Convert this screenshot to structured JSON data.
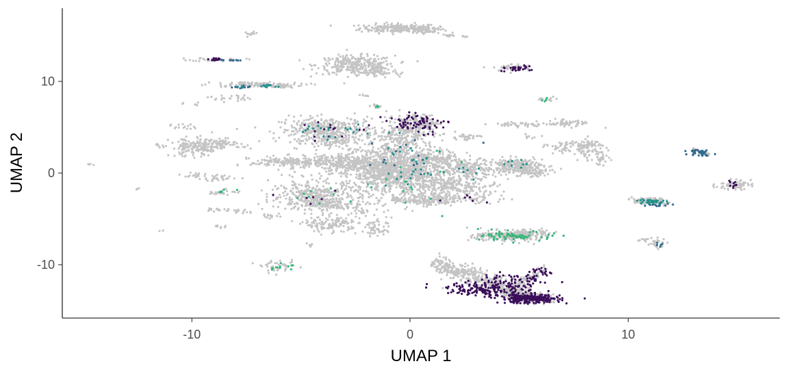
{
  "chart_data": {
    "type": "scatter",
    "title": "",
    "xlabel": "UMAP 1",
    "ylabel": "UMAP 2",
    "xlim": [
      -16,
      17
    ],
    "ylim": [
      -15.5,
      17.5
    ],
    "x_ticks": [
      {
        "value": -10,
        "label": "-10"
      },
      {
        "value": 0,
        "label": "0"
      },
      {
        "value": 10,
        "label": "10"
      }
    ],
    "y_ticks": [
      {
        "value": -10,
        "label": "-10"
      },
      {
        "value": 0,
        "label": "0"
      },
      {
        "value": 10,
        "label": "10"
      }
    ],
    "grid": false,
    "legend": "none",
    "colors": {
      "background_points": "#c4c4c4",
      "highlight_dark": "#3b0f5a",
      "highlight_mid": "#31688e",
      "highlight_teal": "#21918c",
      "highlight_green": "#35b779",
      "axis": "#000000",
      "tick_text": "#4d4d4d"
    },
    "clusters": [
      {
        "cx": -0.5,
        "cy": 15.8,
        "sx": 0.9,
        "sy": 0.25,
        "n": 220
      },
      {
        "cx": 0.8,
        "cy": 15.6,
        "sx": 0.3,
        "sy": 0.2,
        "n": 40
      },
      {
        "cx": -7.3,
        "cy": 15.2,
        "sx": 0.15,
        "sy": 0.1,
        "n": 12
      },
      {
        "cx": 1.8,
        "cy": 15.0,
        "sx": 0.15,
        "sy": 0.08,
        "n": 10
      },
      {
        "cx": -2.5,
        "cy": 11.8,
        "sx": 0.9,
        "sy": 0.5,
        "n": 300
      },
      {
        "cx": -1.5,
        "cy": 11.0,
        "sx": 0.5,
        "sy": 0.3,
        "n": 60
      },
      {
        "cx": 4.7,
        "cy": 11.5,
        "sx": 0.45,
        "sy": 0.2,
        "n": 50
      },
      {
        "cx": -8.8,
        "cy": 12.4,
        "sx": 0.6,
        "sy": 0.1,
        "n": 30
      },
      {
        "cx": -7.2,
        "cy": 9.6,
        "sx": 1.2,
        "sy": 0.15,
        "n": 90
      },
      {
        "cx": -8.3,
        "cy": 8.2,
        "sx": 0.5,
        "sy": 0.2,
        "n": 25
      },
      {
        "cx": -10,
        "cy": 7.5,
        "sx": 0.2,
        "sy": 0.1,
        "n": 6
      },
      {
        "cx": 6.3,
        "cy": 8.0,
        "sx": 0.3,
        "sy": 0.15,
        "n": 15
      },
      {
        "cx": -1.5,
        "cy": 7.3,
        "sx": 0.15,
        "sy": 0.12,
        "n": 12
      },
      {
        "cx": -2.1,
        "cy": 8.4,
        "sx": 0.1,
        "sy": 0.08,
        "n": 6
      },
      {
        "cx": -3.8,
        "cy": 4.7,
        "sx": 1.1,
        "sy": 0.7,
        "n": 380
      },
      {
        "cx": -3.5,
        "cy": 3.5,
        "sx": 0.6,
        "sy": 0.4,
        "n": 80
      },
      {
        "cx": -0.2,
        "cy": 4.5,
        "sx": 0.6,
        "sy": 0.9,
        "n": 260
      },
      {
        "cx": 0.5,
        "cy": 5.5,
        "sx": 0.4,
        "sy": 0.4,
        "n": 80
      },
      {
        "cx": -0.5,
        "cy": 1.0,
        "sx": 1.3,
        "sy": 1.2,
        "n": 900
      },
      {
        "cx": -0.5,
        "cy": -1.0,
        "sx": 1.0,
        "sy": 1.0,
        "n": 350
      },
      {
        "cx": -2.0,
        "cy": 0.8,
        "sx": 1.2,
        "sy": 0.6,
        "n": 250
      },
      {
        "cx": -3.5,
        "cy": 1.2,
        "sx": 0.8,
        "sy": 0.4,
        "n": 150
      },
      {
        "cx": -5.7,
        "cy": 1.2,
        "sx": 0.8,
        "sy": 0.3,
        "n": 150
      },
      {
        "cx": 1.2,
        "cy": 1.5,
        "sx": 0.5,
        "sy": 0.4,
        "n": 80
      },
      {
        "cx": 2.8,
        "cy": 0.5,
        "sx": 0.6,
        "sy": 0.5,
        "n": 150
      },
      {
        "cx": 2.5,
        "cy": -1.5,
        "sx": 0.8,
        "sy": 0.6,
        "n": 150
      },
      {
        "cx": 1.6,
        "cy": -2.8,
        "sx": 1.3,
        "sy": 0.25,
        "n": 120
      },
      {
        "cx": 1.7,
        "cy": -1.0,
        "sx": 0.3,
        "sy": 0.3,
        "n": 30
      },
      {
        "cx": 2.5,
        "cy": 3.9,
        "sx": 0.35,
        "sy": 0.2,
        "n": 30
      },
      {
        "cx": 1.0,
        "cy": -2.0,
        "sx": 0.5,
        "sy": 0.8,
        "n": 60
      },
      {
        "cx": -4.4,
        "cy": -2.5,
        "sx": 1.0,
        "sy": 0.8,
        "n": 380
      },
      {
        "cx": -3.6,
        "cy": -3.5,
        "sx": 0.5,
        "sy": 0.25,
        "n": 80
      },
      {
        "cx": -3.6,
        "cy": -5.6,
        "sx": 0.6,
        "sy": 0.4,
        "n": 120
      },
      {
        "cx": -1.5,
        "cy": -6.2,
        "sx": 0.3,
        "sy": 0.4,
        "n": 40
      },
      {
        "cx": -2.0,
        "cy": -4.2,
        "sx": 0.5,
        "sy": 0.8,
        "n": 50
      },
      {
        "cx": -9.8,
        "cy": 2.8,
        "sx": 0.6,
        "sy": 0.5,
        "n": 180
      },
      {
        "cx": -8.5,
        "cy": 3.2,
        "sx": 0.5,
        "sy": 0.25,
        "n": 60
      },
      {
        "cx": -10.5,
        "cy": 5.0,
        "sx": 0.3,
        "sy": 0.2,
        "n": 15
      },
      {
        "cx": -11.5,
        "cy": 3.0,
        "sx": 0.15,
        "sy": 0.1,
        "n": 5
      },
      {
        "cx": -8.8,
        "cy": -0.5,
        "sx": 0.5,
        "sy": 0.2,
        "n": 30
      },
      {
        "cx": -9.8,
        "cy": -0.2,
        "sx": 0.25,
        "sy": 0.15,
        "n": 15
      },
      {
        "cx": -8.6,
        "cy": -2.1,
        "sx": 0.4,
        "sy": 0.15,
        "n": 25
      },
      {
        "cx": -8.7,
        "cy": -4.0,
        "sx": 0.3,
        "sy": 0.12,
        "n": 18
      },
      {
        "cx": -8.7,
        "cy": -5.8,
        "sx": 0.15,
        "sy": 0.1,
        "n": 8
      },
      {
        "cx": -6.5,
        "cy": -4.7,
        "sx": 0.3,
        "sy": 0.15,
        "n": 15
      },
      {
        "cx": -7.7,
        "cy": -4.2,
        "sx": 0.3,
        "sy": 0.12,
        "n": 12
      },
      {
        "cx": -6.0,
        "cy": -10.2,
        "sx": 0.4,
        "sy": 0.3,
        "n": 40
      },
      {
        "cx": -4.6,
        "cy": -7.9,
        "sx": 0.12,
        "sy": 0.1,
        "n": 6
      },
      {
        "cx": -14.6,
        "cy": 0.9,
        "sx": 0.08,
        "sy": 0.06,
        "n": 4
      },
      {
        "cx": -12.5,
        "cy": -1.8,
        "sx": 0.08,
        "sy": 0.06,
        "n": 3
      },
      {
        "cx": -11.4,
        "cy": -6.3,
        "sx": 0.08,
        "sy": 0.06,
        "n": 3
      },
      {
        "cx": 4.9,
        "cy": 0.8,
        "sx": 0.6,
        "sy": 0.4,
        "n": 250
      },
      {
        "cx": 5.6,
        "cy": 0.1,
        "sx": 0.4,
        "sy": 0.3,
        "n": 60
      },
      {
        "cx": 4.5,
        "cy": -6.9,
        "sx": 0.8,
        "sy": 0.3,
        "n": 180
      },
      {
        "cx": 5.3,
        "cy": -6.6,
        "sx": 0.5,
        "sy": 0.2,
        "n": 90
      },
      {
        "cx": 4.9,
        "cy": 5.3,
        "sx": 0.6,
        "sy": 0.15,
        "n": 40
      },
      {
        "cx": 6.9,
        "cy": 5.4,
        "sx": 0.6,
        "sy": 0.2,
        "n": 45
      },
      {
        "cx": 7.0,
        "cy": 2.8,
        "sx": 0.3,
        "sy": 0.4,
        "n": 35
      },
      {
        "cx": 8.2,
        "cy": 2.8,
        "sx": 0.4,
        "sy": 0.5,
        "n": 90
      },
      {
        "cx": 8.7,
        "cy": 1.5,
        "sx": 0.2,
        "sy": 0.4,
        "n": 30
      },
      {
        "cx": 5.5,
        "cy": 4.0,
        "sx": 0.2,
        "sy": 0.1,
        "n": 8
      },
      {
        "cx": 6.2,
        "cy": 3.0,
        "sx": 0.1,
        "sy": 0.08,
        "n": 5
      },
      {
        "cx": 11.0,
        "cy": -3.1,
        "sx": 0.4,
        "sy": 0.2,
        "n": 100
      },
      {
        "cx": 11.3,
        "cy": -7.6,
        "sx": 0.2,
        "sy": 0.3,
        "n": 25
      },
      {
        "cx": 10.7,
        "cy": -7.3,
        "sx": 0.15,
        "sy": 0.08,
        "n": 8
      },
      {
        "cx": 14.8,
        "cy": -1.3,
        "sx": 0.4,
        "sy": 0.25,
        "n": 60
      },
      {
        "cx": 2.5,
        "cy": 14.9,
        "sx": 0.1,
        "sy": 0.06,
        "n": 5
      },
      {
        "cx": 7.5,
        "cy": 5.5,
        "sx": 0.3,
        "sy": 0.1,
        "n": 15
      }
    ],
    "bg_strips": [
      {
        "x0": 1.2,
        "y0": -9.8,
        "x1": 5.5,
        "y1": -13.5,
        "spread": 0.5,
        "n": 450
      },
      {
        "x0": 4.5,
        "y0": -13.2,
        "x1": 6.5,
        "y1": -13.8,
        "spread": 0.25,
        "n": 180
      },
      {
        "x0": 4.2,
        "y0": -13.0,
        "x1": 6.2,
        "y1": -10.5,
        "spread": 0.2,
        "n": 80
      },
      {
        "x0": 13.0,
        "y0": 2.6,
        "x1": 13.7,
        "y1": 2.0,
        "spread": 0.05,
        "n": 40
      },
      {
        "x0": -7.8,
        "y0": 9.8,
        "x1": -5.8,
        "y1": 9.5,
        "spread": 0.1,
        "n": 60
      },
      {
        "x0": -0.8,
        "y0": -3.0,
        "x1": 1.8,
        "y1": -3.2,
        "spread": 0.15,
        "n": 80
      }
    ],
    "highlights": [
      {
        "color": "dark",
        "cx": 5.5,
        "cy": -13.7,
        "sx": 0.7,
        "sy": 0.25,
        "n": 260
      },
      {
        "color": "dark",
        "cx": 3.5,
        "cy": -12.6,
        "sx": 0.9,
        "sy": 0.4,
        "n": 160
      },
      {
        "color": "dark",
        "cx": 5.0,
        "cy": -11.8,
        "sx": 0.8,
        "sy": 0.4,
        "n": 60
      },
      {
        "color": "dark",
        "cx": 6.0,
        "cy": -10.8,
        "sx": 0.4,
        "sy": 0.3,
        "n": 20
      },
      {
        "color": "dark",
        "cx": 0.3,
        "cy": 5.6,
        "sx": 0.7,
        "sy": 0.4,
        "n": 60
      },
      {
        "color": "dark",
        "cx": 4.8,
        "cy": 11.4,
        "sx": 0.35,
        "sy": 0.15,
        "n": 28
      },
      {
        "color": "dark",
        "cx": -9.0,
        "cy": 12.4,
        "sx": 0.25,
        "sy": 0.08,
        "n": 15
      },
      {
        "color": "dark",
        "cx": 14.8,
        "cy": -1.2,
        "sx": 0.15,
        "sy": 0.15,
        "n": 10
      },
      {
        "color": "dark",
        "cx": -3.8,
        "cy": 4.6,
        "sx": 0.9,
        "sy": 0.6,
        "n": 14
      },
      {
        "color": "dark",
        "cx": 0.8,
        "cy": 4.8,
        "sx": 0.3,
        "sy": 0.4,
        "n": 12
      },
      {
        "color": "dark",
        "cx": -4.4,
        "cy": -2.5,
        "sx": 0.8,
        "sy": 0.6,
        "n": 6
      },
      {
        "color": "dark",
        "cx": 2.8,
        "cy": -2.8,
        "sx": 0.6,
        "sy": 0.3,
        "n": 6
      },
      {
        "color": "mid",
        "cx": 13.3,
        "cy": 2.3,
        "sx": 0.25,
        "sy": 0.2,
        "n": 35
      },
      {
        "color": "mid",
        "cx": -8.3,
        "cy": 12.3,
        "sx": 0.2,
        "sy": 0.06,
        "n": 10
      },
      {
        "color": "mid",
        "cx": 11.3,
        "cy": -3.4,
        "sx": 0.3,
        "sy": 0.12,
        "n": 15
      },
      {
        "color": "mid",
        "cx": 11.4,
        "cy": -7.8,
        "sx": 0.1,
        "sy": 0.15,
        "n": 5
      },
      {
        "color": "mid",
        "cx": -7.8,
        "cy": 9.4,
        "sx": 0.3,
        "sy": 0.1,
        "n": 10
      },
      {
        "color": "mid",
        "cx": -0.6,
        "cy": 1.5,
        "sx": 1.2,
        "sy": 1.5,
        "n": 15
      },
      {
        "color": "teal",
        "cx": 11.0,
        "cy": -3.1,
        "sx": 0.3,
        "sy": 0.15,
        "n": 30
      },
      {
        "color": "teal",
        "cx": -0.3,
        "cy": 1.0,
        "sx": 1.0,
        "sy": 1.5,
        "n": 30
      },
      {
        "color": "teal",
        "cx": -6.8,
        "cy": 9.5,
        "sx": 0.6,
        "sy": 0.08,
        "n": 15
      },
      {
        "color": "teal",
        "cx": -3.5,
        "cy": 4.5,
        "sx": 0.8,
        "sy": 0.6,
        "n": 20
      },
      {
        "color": "teal",
        "cx": 4.7,
        "cy": 0.9,
        "sx": 0.3,
        "sy": 0.3,
        "n": 8
      },
      {
        "color": "teal",
        "cx": 2.6,
        "cy": 0.3,
        "sx": 0.5,
        "sy": 0.4,
        "n": 8
      },
      {
        "color": "green",
        "cx": 5.0,
        "cy": -6.9,
        "sx": 0.8,
        "sy": 0.25,
        "n": 70
      },
      {
        "color": "green",
        "cx": -6.0,
        "cy": -10.3,
        "sx": 0.3,
        "sy": 0.2,
        "n": 12
      },
      {
        "color": "green",
        "cx": 0.0,
        "cy": -0.5,
        "sx": 1.0,
        "sy": 1.5,
        "n": 15
      },
      {
        "color": "green",
        "cx": -8.5,
        "cy": -2.0,
        "sx": 0.3,
        "sy": 0.1,
        "n": 6
      },
      {
        "color": "green",
        "cx": -4.4,
        "cy": -2.3,
        "sx": 0.8,
        "sy": 0.7,
        "n": 8
      },
      {
        "color": "green",
        "cx": -1.5,
        "cy": 7.3,
        "sx": 0.1,
        "sy": 0.08,
        "n": 3
      },
      {
        "color": "green",
        "cx": 6.3,
        "cy": 8.0,
        "sx": 0.15,
        "sy": 0.08,
        "n": 4
      }
    ]
  }
}
